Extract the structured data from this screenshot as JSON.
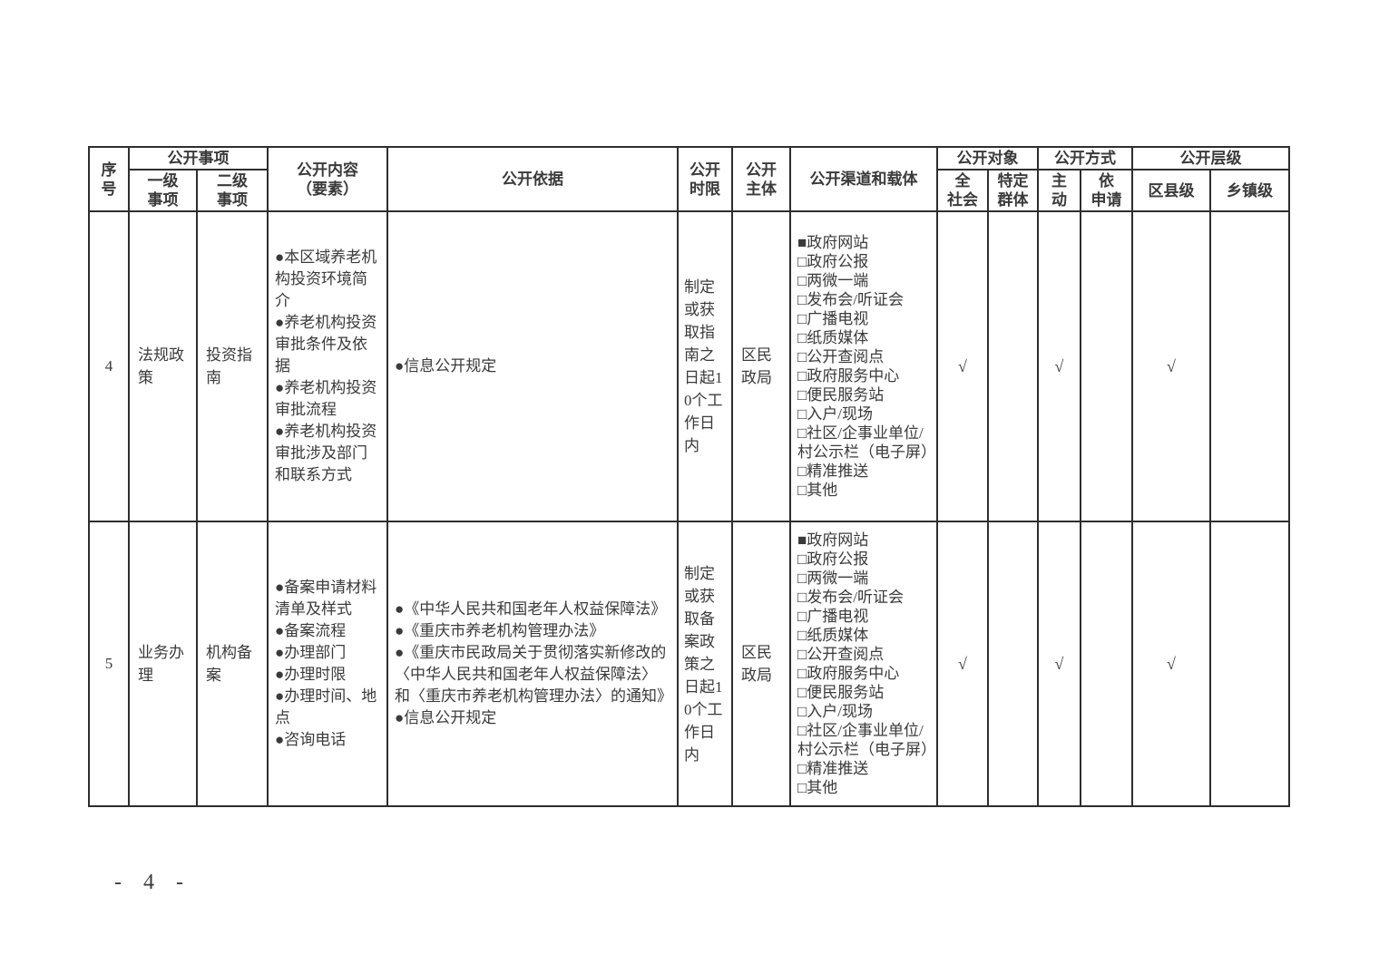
{
  "footer": {
    "page_number": "- 4 -"
  },
  "table": {
    "header": {
      "xuhao": "序\n号",
      "shixiang_group": "公开事项",
      "yiji": "一级\n事项",
      "erji": "二级\n事项",
      "neirong": "公开内容\n（要素）",
      "yiju": "公开依据",
      "shixian": "公开\n时限",
      "zhuti": "公开\n主体",
      "qudao": "公开渠道和载体",
      "duixiang_group": "公开对象",
      "quanshehui": "全\n社会",
      "teding": "特定\n群体",
      "fangshi_group": "公开方式",
      "zhudong": "主\n动",
      "yishenqing": "依\n申请",
      "cengji_group": "公开层级",
      "quxianji": "区县级",
      "xiangzhenji": "乡镇级"
    },
    "rows": [
      {
        "xuhao": "4",
        "yiji": "法规政策",
        "erji": "投资指南",
        "neirong": [
          "本区域养老机构投资环境简介",
          "养老机构投资审批条件及依据",
          "养老机构投资审批流程",
          "养老机构投资审批涉及部门和联系方式"
        ],
        "yiju": [
          "信息公开规定"
        ],
        "shixian": "制定或获取指南之日起10个工作日内",
        "zhuti": "区民政局",
        "qudao": [
          {
            "checked": true,
            "label": "政府网站"
          },
          {
            "checked": false,
            "label": "政府公报"
          },
          {
            "checked": false,
            "label": "两微一端"
          },
          {
            "checked": false,
            "label": "发布会/听证会"
          },
          {
            "checked": false,
            "label": "广播电视"
          },
          {
            "checked": false,
            "label": "纸质媒体"
          },
          {
            "checked": false,
            "label": "公开查阅点"
          },
          {
            "checked": false,
            "label": "政府服务中心"
          },
          {
            "checked": false,
            "label": "便民服务站"
          },
          {
            "checked": false,
            "label": "入户/现场"
          },
          {
            "checked": false,
            "label": "社区/企事业单位/村公示栏（电子屏）"
          },
          {
            "checked": false,
            "label": "精准推送"
          },
          {
            "checked": false,
            "label": "其他"
          }
        ],
        "quanshehui": "√",
        "teding": "",
        "zhudong": "√",
        "yishenqing": "",
        "quxianji": "√",
        "xiangzhenji": ""
      },
      {
        "xuhao": "5",
        "yiji": "业务办理",
        "erji": "机构备案",
        "neirong": [
          "备案申请材料清单及样式",
          "备案流程",
          "办理部门",
          "办理时限",
          "办理时间、地点",
          "咨询电话"
        ],
        "yiju": [
          "《中华人民共和国老年人权益保障法》",
          "《重庆市养老机构管理办法》",
          "《重庆市民政局关于贯彻落实新修改的〈中华人民共和国老年人权益保障法〉和〈重庆市养老机构管理办法〉的通知》",
          "信息公开规定"
        ],
        "shixian": "制定或获取备案政策之日起10个工作日内",
        "zhuti": "区民政局",
        "qudao": [
          {
            "checked": true,
            "label": "政府网站"
          },
          {
            "checked": false,
            "label": "政府公报"
          },
          {
            "checked": false,
            "label": "两微一端"
          },
          {
            "checked": false,
            "label": "发布会/听证会"
          },
          {
            "checked": false,
            "label": "广播电视"
          },
          {
            "checked": false,
            "label": "纸质媒体"
          },
          {
            "checked": false,
            "label": "公开查阅点"
          },
          {
            "checked": false,
            "label": "政府服务中心"
          },
          {
            "checked": false,
            "label": "便民服务站"
          },
          {
            "checked": false,
            "label": "入户/现场"
          },
          {
            "checked": false,
            "label": "社区/企事业单位/村公示栏（电子屏）"
          },
          {
            "checked": false,
            "label": "精准推送"
          },
          {
            "checked": false,
            "label": "其他"
          }
        ],
        "quanshehui": "√",
        "teding": "",
        "zhudong": "√",
        "yishenqing": "",
        "quxianji": "√",
        "xiangzhenji": ""
      }
    ]
  }
}
